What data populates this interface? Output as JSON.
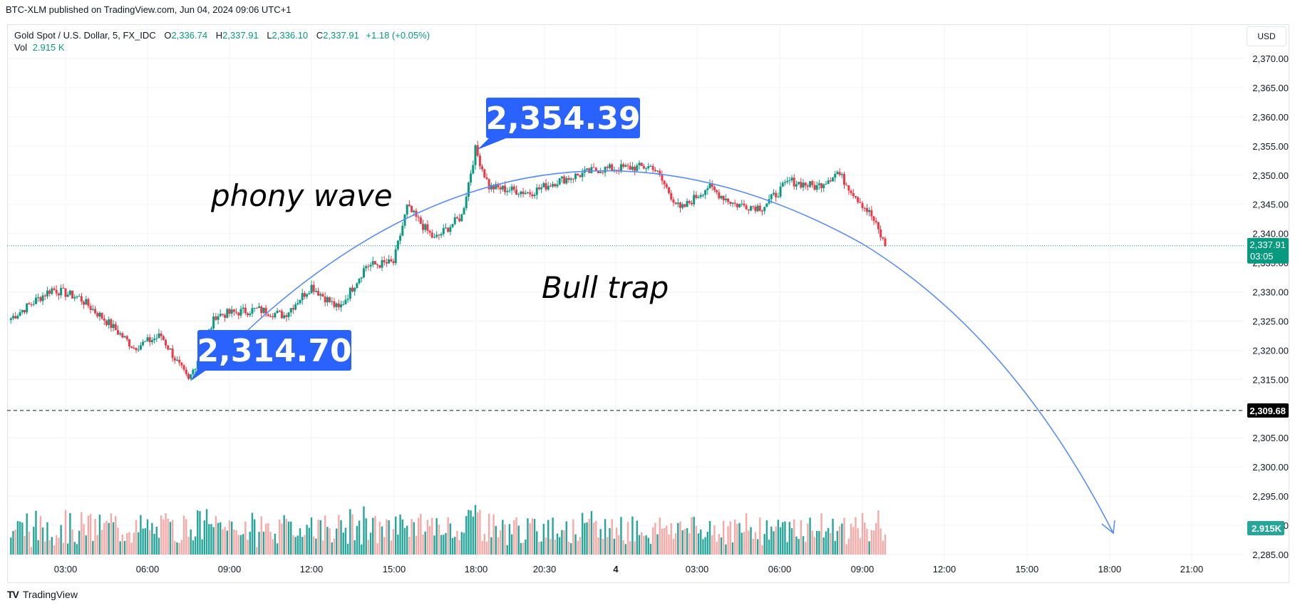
{
  "header": {
    "published": "BTC-XLM published on TradingView.com, Jun 04, 2024 09:06 UTC+1"
  },
  "legend": {
    "symbol": "Gold Spot / U.S. Dollar, 5, FX_IDC",
    "open_label": "O",
    "open": "2,336.74",
    "high_label": "H",
    "high": "2,337.91",
    "low_label": "L",
    "low": "2,336.10",
    "close_label": "C",
    "close": "2,337.91",
    "change": "+1.18 (+0.05%)",
    "vol_label": "Vol",
    "vol_value": "2.915 K"
  },
  "currency_button": "USD",
  "colors": {
    "up": "#089981",
    "down": "#f23645",
    "vol_up": "#26a69a",
    "vol_down": "#f7a9a7",
    "callout": "#2962ff",
    "arc": "#5b8df5",
    "grid": "#f0f3fa"
  },
  "chart_data": {
    "type": "candlestick",
    "symbol": "Gold Spot / U.S. Dollar",
    "interval": "5",
    "y_axis_ticks": [
      "2,285.00",
      "2,290.00",
      "2,295.00",
      "2,300.00",
      "2,305.00",
      "2,310.00",
      "2,315.00",
      "2,320.00",
      "2,325.00",
      "2,330.00",
      "2,335.00",
      "2,340.00",
      "2,345.00",
      "2,350.00",
      "2,355.00",
      "2,360.00",
      "2,365.00",
      "2,370.00"
    ],
    "ylim": [
      2285,
      2372
    ],
    "x_axis_ticks": [
      "03:00",
      "06:00",
      "09:00",
      "12:00",
      "15:00",
      "18:00",
      "20:30",
      "4",
      "03:00",
      "06:00",
      "09:00",
      "12:00",
      "15:00",
      "18:00",
      "21:00"
    ],
    "price_path_keypoints": [
      {
        "time": "01:00",
        "price": 2325.5
      },
      {
        "time": "02:30",
        "price": 2330.5
      },
      {
        "time": "03:30",
        "price": 2329.0
      },
      {
        "time": "04:30",
        "price": 2325.0
      },
      {
        "time": "05:30",
        "price": 2320.5
      },
      {
        "time": "06:30",
        "price": 2322.5
      },
      {
        "time": "07:30",
        "price": 2314.7
      },
      {
        "time": "08:30",
        "price": 2326.0
      },
      {
        "time": "10:00",
        "price": 2327.0
      },
      {
        "time": "11:00",
        "price": 2326.0
      },
      {
        "time": "12:00",
        "price": 2331.0
      },
      {
        "time": "13:00",
        "price": 2327.0
      },
      {
        "time": "14:00",
        "price": 2334.5
      },
      {
        "time": "15:00",
        "price": 2335.0
      },
      {
        "time": "15:30",
        "price": 2344.5
      },
      {
        "time": "16:30",
        "price": 2339.0
      },
      {
        "time": "17:30",
        "price": 2343.0
      },
      {
        "time": "18:00",
        "price": 2354.39
      },
      {
        "time": "18:30",
        "price": 2348.0
      },
      {
        "time": "20:00",
        "price": 2347.0
      },
      {
        "time": "21:00",
        "price": 2349.0
      },
      {
        "time": "22:30",
        "price": 2351.0
      },
      {
        "time": "00:30",
        "price": 2351.5
      },
      {
        "time": "01:30",
        "price": 2344.0
      },
      {
        "time": "02:30",
        "price": 2348.0
      },
      {
        "time": "03:30",
        "price": 2345.0
      },
      {
        "time": "04:30",
        "price": 2344.5
      },
      {
        "time": "05:30",
        "price": 2349.0
      },
      {
        "time": "06:30",
        "price": 2348.0
      },
      {
        "time": "07:15",
        "price": 2350.5
      },
      {
        "time": "08:00",
        "price": 2346.0
      },
      {
        "time": "08:30",
        "price": 2343.0
      },
      {
        "time": "09:00",
        "price": 2337.91
      }
    ],
    "last_price": "2,337.91",
    "countdown": "03:05",
    "horizontal_line": "2,309.68",
    "volume_last": "2.915K",
    "annotations": {
      "low_callout": "2,314.70",
      "high_callout": "2,354.39",
      "text1": "phony wave",
      "text2": "Bull trap"
    }
  },
  "footer": {
    "brand": "TradingView",
    "logo": "TV"
  }
}
